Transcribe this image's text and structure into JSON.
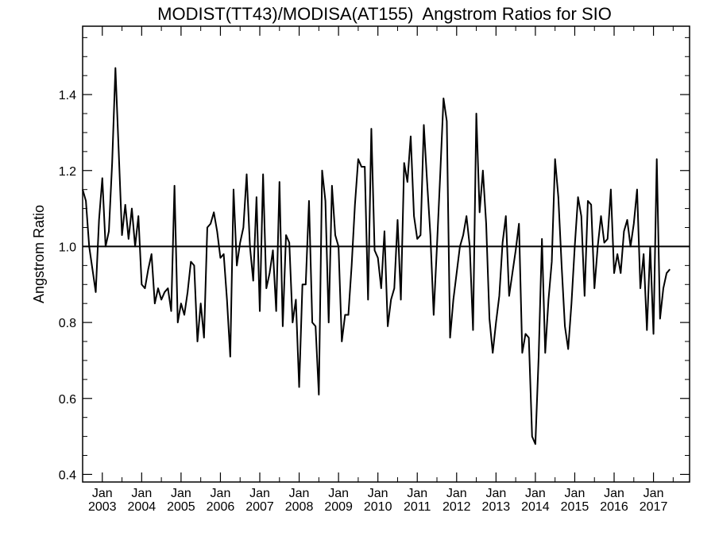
{
  "chart_data": {
    "type": "line",
    "title": "MODIST(TT43)/MODISA(AT155)  Angstrom Ratios for SIO",
    "xlabel": "",
    "ylabel": "Angstrom Ratio",
    "ylim": [
      0.38,
      1.58
    ],
    "yticks": [
      0.4,
      0.6,
      0.8,
      1.0,
      1.2,
      1.4
    ],
    "ytick_labels": [
      "0.4",
      "0.6",
      "0.8",
      "1.0",
      "1.2",
      "1.4"
    ],
    "xlim": [
      "2002-07",
      "2017-12"
    ],
    "xticks": [
      {
        "month": "Jan",
        "year": "2003",
        "date": "2003-01"
      },
      {
        "month": "Jan",
        "year": "2004",
        "date": "2004-01"
      },
      {
        "month": "Jan",
        "year": "2005",
        "date": "2005-01"
      },
      {
        "month": "Jan",
        "year": "2006",
        "date": "2006-01"
      },
      {
        "month": "Jan",
        "year": "2007",
        "date": "2007-01"
      },
      {
        "month": "Jan",
        "year": "2008",
        "date": "2008-01"
      },
      {
        "month": "Jan",
        "year": "2009",
        "date": "2009-01"
      },
      {
        "month": "Jan",
        "year": "2010",
        "date": "2010-01"
      },
      {
        "month": "Jan",
        "year": "2011",
        "date": "2011-01"
      },
      {
        "month": "Jan",
        "year": "2012",
        "date": "2012-01"
      },
      {
        "month": "Jan",
        "year": "2013",
        "date": "2013-01"
      },
      {
        "month": "Jan",
        "year": "2014",
        "date": "2014-01"
      },
      {
        "month": "Jan",
        "year": "2015",
        "date": "2015-01"
      },
      {
        "month": "Jan",
        "year": "2016",
        "date": "2016-01"
      },
      {
        "month": "Jan",
        "year": "2017",
        "date": "2017-01"
      }
    ],
    "reference_line": 1.0,
    "grid": false,
    "series": [
      {
        "color": "#000000",
        "points": [
          [
            "2002-07",
            1.15
          ],
          [
            "2002-08",
            1.12
          ],
          [
            "2002-09",
            1.0
          ],
          [
            "2002-10",
            0.94
          ],
          [
            "2002-11",
            0.88
          ],
          [
            "2002-12",
            1.07
          ],
          [
            "2003-01",
            1.18
          ],
          [
            "2003-02",
            1.0
          ],
          [
            "2003-03",
            1.04
          ],
          [
            "2003-04",
            1.22
          ],
          [
            "2003-05",
            1.47
          ],
          [
            "2003-06",
            1.25
          ],
          [
            "2003-07",
            1.03
          ],
          [
            "2003-08",
            1.11
          ],
          [
            "2003-09",
            1.02
          ],
          [
            "2003-10",
            1.1
          ],
          [
            "2003-11",
            1.0
          ],
          [
            "2003-12",
            1.08
          ],
          [
            "2004-01",
            0.9
          ],
          [
            "2004-02",
            0.89
          ],
          [
            "2004-03",
            0.94
          ],
          [
            "2004-04",
            0.98
          ],
          [
            "2004-05",
            0.85
          ],
          [
            "2004-06",
            0.89
          ],
          [
            "2004-07",
            0.86
          ],
          [
            "2004-08",
            0.88
          ],
          [
            "2004-09",
            0.89
          ],
          [
            "2004-10",
            0.83
          ],
          [
            "2004-11",
            1.16
          ],
          [
            "2004-12",
            0.8
          ],
          [
            "2005-01",
            0.85
          ],
          [
            "2005-02",
            0.82
          ],
          [
            "2005-03",
            0.88
          ],
          [
            "2005-04",
            0.96
          ],
          [
            "2005-05",
            0.95
          ],
          [
            "2005-06",
            0.75
          ],
          [
            "2005-07",
            0.85
          ],
          [
            "2005-08",
            0.76
          ],
          [
            "2005-09",
            1.05
          ],
          [
            "2005-10",
            1.06
          ],
          [
            "2005-11",
            1.09
          ],
          [
            "2005-12",
            1.04
          ],
          [
            "2006-01",
            0.97
          ],
          [
            "2006-02",
            0.98
          ],
          [
            "2006-03",
            0.86
          ],
          [
            "2006-04",
            0.71
          ],
          [
            "2006-05",
            1.15
          ],
          [
            "2006-06",
            0.95
          ],
          [
            "2006-07",
            1.01
          ],
          [
            "2006-08",
            1.05
          ],
          [
            "2006-09",
            1.19
          ],
          [
            "2006-10",
            1.0
          ],
          [
            "2006-11",
            0.91
          ],
          [
            "2006-12",
            1.13
          ],
          [
            "2007-01",
            0.83
          ],
          [
            "2007-02",
            1.19
          ],
          [
            "2007-03",
            0.89
          ],
          [
            "2007-04",
            0.93
          ],
          [
            "2007-05",
            0.99
          ],
          [
            "2007-06",
            0.83
          ],
          [
            "2007-07",
            1.17
          ],
          [
            "2007-08",
            0.79
          ],
          [
            "2007-09",
            1.03
          ],
          [
            "2007-10",
            1.01
          ],
          [
            "2007-11",
            0.8
          ],
          [
            "2007-12",
            0.86
          ],
          [
            "2008-01",
            0.63
          ],
          [
            "2008-02",
            0.9
          ],
          [
            "2008-03",
            0.9
          ],
          [
            "2008-04",
            1.12
          ],
          [
            "2008-05",
            0.8
          ],
          [
            "2008-06",
            0.79
          ],
          [
            "2008-07",
            0.61
          ],
          [
            "2008-08",
            1.2
          ],
          [
            "2008-09",
            1.12
          ],
          [
            "2008-10",
            0.8
          ],
          [
            "2008-11",
            1.16
          ],
          [
            "2008-12",
            1.03
          ],
          [
            "2009-01",
            1.0
          ],
          [
            "2009-02",
            0.75
          ],
          [
            "2009-03",
            0.82
          ],
          [
            "2009-04",
            0.82
          ],
          [
            "2009-05",
            0.95
          ],
          [
            "2009-06",
            1.11
          ],
          [
            "2009-07",
            1.23
          ],
          [
            "2009-08",
            1.21
          ],
          [
            "2009-09",
            1.21
          ],
          [
            "2009-10",
            0.86
          ],
          [
            "2009-11",
            1.31
          ],
          [
            "2009-12",
            0.99
          ],
          [
            "2010-01",
            0.97
          ],
          [
            "2010-02",
            0.89
          ],
          [
            "2010-03",
            1.04
          ],
          [
            "2010-04",
            0.79
          ],
          [
            "2010-05",
            0.86
          ],
          [
            "2010-06",
            0.89
          ],
          [
            "2010-07",
            1.07
          ],
          [
            "2010-08",
            0.86
          ],
          [
            "2010-09",
            1.22
          ],
          [
            "2010-10",
            1.17
          ],
          [
            "2010-11",
            1.29
          ],
          [
            "2010-12",
            1.08
          ],
          [
            "2011-01",
            1.02
          ],
          [
            "2011-02",
            1.03
          ],
          [
            "2011-03",
            1.32
          ],
          [
            "2011-04",
            1.17
          ],
          [
            "2011-05",
            1.03
          ],
          [
            "2011-06",
            0.82
          ],
          [
            "2011-07",
            1.0
          ],
          [
            "2011-08",
            1.19
          ],
          [
            "2011-09",
            1.39
          ],
          [
            "2011-10",
            1.33
          ],
          [
            "2011-11",
            0.76
          ],
          [
            "2011-12",
            0.86
          ],
          [
            "2012-01",
            0.93
          ],
          [
            "2012-02",
            1.0
          ],
          [
            "2012-03",
            1.03
          ],
          [
            "2012-04",
            1.08
          ],
          [
            "2012-05",
            1.0
          ],
          [
            "2012-06",
            0.78
          ],
          [
            "2012-07",
            1.35
          ],
          [
            "2012-08",
            1.09
          ],
          [
            "2012-09",
            1.2
          ],
          [
            "2012-10",
            1.06
          ],
          [
            "2012-11",
            0.81
          ],
          [
            "2012-12",
            0.72
          ],
          [
            "2013-01",
            0.8
          ],
          [
            "2013-02",
            0.87
          ],
          [
            "2013-03",
            1.01
          ],
          [
            "2013-04",
            1.08
          ],
          [
            "2013-05",
            0.87
          ],
          [
            "2013-06",
            0.93
          ],
          [
            "2013-07",
            0.99
          ],
          [
            "2013-08",
            1.06
          ],
          [
            "2013-09",
            0.72
          ],
          [
            "2013-10",
            0.77
          ],
          [
            "2013-11",
            0.76
          ],
          [
            "2013-12",
            0.5
          ],
          [
            "2014-01",
            0.48
          ],
          [
            "2014-02",
            0.71
          ],
          [
            "2014-03",
            1.02
          ],
          [
            "2014-04",
            0.72
          ],
          [
            "2014-05",
            0.86
          ],
          [
            "2014-06",
            0.96
          ],
          [
            "2014-07",
            1.23
          ],
          [
            "2014-08",
            1.13
          ],
          [
            "2014-09",
            0.95
          ],
          [
            "2014-10",
            0.79
          ],
          [
            "2014-11",
            0.73
          ],
          [
            "2014-12",
            0.85
          ],
          [
            "2015-01",
            1.0
          ],
          [
            "2015-02",
            1.13
          ],
          [
            "2015-03",
            1.08
          ],
          [
            "2015-04",
            0.87
          ],
          [
            "2015-05",
            1.12
          ],
          [
            "2015-06",
            1.11
          ],
          [
            "2015-07",
            0.89
          ],
          [
            "2015-08",
            1.0
          ],
          [
            "2015-09",
            1.08
          ],
          [
            "2015-10",
            1.01
          ],
          [
            "2015-11",
            1.02
          ],
          [
            "2015-12",
            1.15
          ],
          [
            "2016-01",
            0.93
          ],
          [
            "2016-02",
            0.98
          ],
          [
            "2016-03",
            0.93
          ],
          [
            "2016-04",
            1.04
          ],
          [
            "2016-05",
            1.07
          ],
          [
            "2016-06",
            1.0
          ],
          [
            "2016-07",
            1.06
          ],
          [
            "2016-08",
            1.15
          ],
          [
            "2016-09",
            0.89
          ],
          [
            "2016-10",
            0.98
          ],
          [
            "2016-11",
            0.78
          ],
          [
            "2016-12",
            1.0
          ],
          [
            "2017-01",
            0.77
          ],
          [
            "2017-02",
            1.23
          ],
          [
            "2017-03",
            0.81
          ],
          [
            "2017-04",
            0.89
          ],
          [
            "2017-05",
            0.93
          ],
          [
            "2017-06",
            0.94
          ]
        ]
      }
    ]
  }
}
